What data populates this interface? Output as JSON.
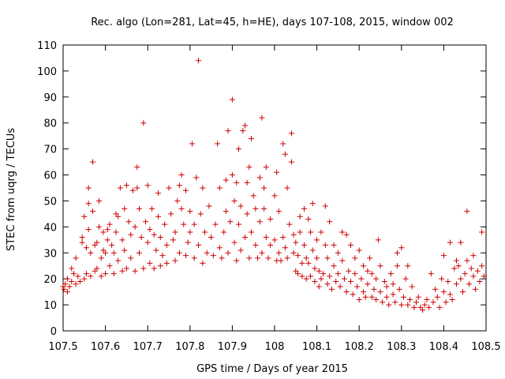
{
  "chart_data": {
    "type": "scatter",
    "title": "Rec. algo (Lon=281, Lat=45, h=HE), days 107-108, 2015, window 002",
    "xlabel": "GPS time / Days of year 2015",
    "ylabel": "STEC from uqrg / TECUs",
    "xlim": [
      107.5,
      108.5
    ],
    "ylim": [
      0,
      110
    ],
    "x_ticks": [
      "107.5",
      "107.6",
      "107.7",
      "107.8",
      "107.9",
      "108",
      "108.1",
      "108.2",
      "108.3",
      "108.4",
      "108.5"
    ],
    "y_ticks": [
      "0",
      "10",
      "20",
      "30",
      "40",
      "50",
      "60",
      "70",
      "80",
      "90",
      "100",
      "110"
    ],
    "grid": false,
    "marker": "+",
    "color": "#cc0000",
    "series": [
      {
        "points": [
          [
            107.5,
            17
          ],
          [
            107.502,
            16
          ],
          [
            107.505,
            18
          ],
          [
            107.51,
            15
          ],
          [
            107.51,
            20
          ],
          [
            107.515,
            17
          ],
          [
            107.52,
            19
          ],
          [
            107.52,
            24
          ],
          [
            107.525,
            22
          ],
          [
            107.53,
            18
          ],
          [
            107.53,
            28
          ],
          [
            107.535,
            21
          ],
          [
            107.54,
            19
          ],
          [
            107.545,
            36
          ],
          [
            107.545,
            34
          ],
          [
            107.55,
            20
          ],
          [
            107.55,
            44
          ],
          [
            107.555,
            22
          ],
          [
            107.555,
            32
          ],
          [
            107.56,
            39
          ],
          [
            107.56,
            49
          ],
          [
            107.56,
            55
          ],
          [
            107.565,
            21
          ],
          [
            107.565,
            30
          ],
          [
            107.57,
            46
          ],
          [
            107.57,
            65
          ],
          [
            107.575,
            23
          ],
          [
            107.575,
            33
          ],
          [
            107.58,
            24
          ],
          [
            107.58,
            34
          ],
          [
            107.585,
            50
          ],
          [
            107.585,
            40
          ],
          [
            107.59,
            21
          ],
          [
            107.59,
            28
          ],
          [
            107.595,
            31
          ],
          [
            107.595,
            38
          ],
          [
            107.6,
            22
          ],
          [
            107.6,
            30
          ],
          [
            107.605,
            39
          ],
          [
            107.605,
            35
          ],
          [
            107.61,
            25
          ],
          [
            107.61,
            41
          ],
          [
            107.615,
            33
          ],
          [
            107.62,
            22
          ],
          [
            107.62,
            30
          ],
          [
            107.625,
            45
          ],
          [
            107.625,
            38
          ],
          [
            107.63,
            27
          ],
          [
            107.63,
            44
          ],
          [
            107.635,
            55
          ],
          [
            107.64,
            23
          ],
          [
            107.64,
            35
          ],
          [
            107.645,
            47
          ],
          [
            107.645,
            31
          ],
          [
            107.65,
            24
          ],
          [
            107.65,
            56
          ],
          [
            107.655,
            42
          ],
          [
            107.66,
            28
          ],
          [
            107.66,
            37
          ],
          [
            107.665,
            54
          ],
          [
            107.67,
            23
          ],
          [
            107.67,
            40
          ],
          [
            107.675,
            55
          ],
          [
            107.675,
            63
          ],
          [
            107.68,
            30
          ],
          [
            107.68,
            47
          ],
          [
            107.685,
            36
          ],
          [
            107.69,
            80
          ],
          [
            107.69,
            24
          ],
          [
            107.695,
            42
          ],
          [
            107.7,
            34
          ],
          [
            107.7,
            56
          ],
          [
            107.705,
            26
          ],
          [
            107.705,
            39
          ],
          [
            107.71,
            47
          ],
          [
            107.715,
            24
          ],
          [
            107.715,
            37
          ],
          [
            107.72,
            31
          ],
          [
            107.725,
            44
          ],
          [
            107.725,
            53
          ],
          [
            107.73,
            25
          ],
          [
            107.73,
            36
          ],
          [
            107.735,
            29
          ],
          [
            107.74,
            41
          ],
          [
            107.745,
            26
          ],
          [
            107.745,
            33
          ],
          [
            107.75,
            55
          ],
          [
            107.755,
            45
          ],
          [
            107.76,
            35
          ],
          [
            107.765,
            27
          ],
          [
            107.765,
            38
          ],
          [
            107.77,
            50
          ],
          [
            107.775,
            56
          ],
          [
            107.775,
            30
          ],
          [
            107.78,
            47
          ],
          [
            107.78,
            60
          ],
          [
            107.785,
            41
          ],
          [
            107.79,
            29
          ],
          [
            107.79,
            54
          ],
          [
            107.795,
            34
          ],
          [
            107.8,
            46
          ],
          [
            107.8,
            38
          ],
          [
            107.805,
            72
          ],
          [
            107.81,
            28
          ],
          [
            107.81,
            41
          ],
          [
            107.815,
            59
          ],
          [
            107.82,
            104
          ],
          [
            107.82,
            33
          ],
          [
            107.825,
            45
          ],
          [
            107.83,
            26
          ],
          [
            107.83,
            55
          ],
          [
            107.835,
            38
          ],
          [
            107.84,
            30
          ],
          [
            107.845,
            48
          ],
          [
            107.85,
            36
          ],
          [
            107.855,
            29
          ],
          [
            107.86,
            41
          ],
          [
            107.865,
            72
          ],
          [
            107.87,
            32
          ],
          [
            107.87,
            55
          ],
          [
            107.875,
            28
          ],
          [
            107.88,
            38
          ],
          [
            107.885,
            46
          ],
          [
            107.885,
            58
          ],
          [
            107.89,
            30
          ],
          [
            107.89,
            77
          ],
          [
            107.895,
            42
          ],
          [
            107.9,
            89
          ],
          [
            107.9,
            60
          ],
          [
            107.905,
            34
          ],
          [
            107.905,
            50
          ],
          [
            107.91,
            27
          ],
          [
            107.91,
            57
          ],
          [
            107.915,
            70
          ],
          [
            107.915,
            41
          ],
          [
            107.92,
            31
          ],
          [
            107.92,
            48
          ],
          [
            107.925,
            77
          ],
          [
            107.93,
            36
          ],
          [
            107.93,
            79
          ],
          [
            107.935,
            45
          ],
          [
            107.935,
            57
          ],
          [
            107.94,
            28
          ],
          [
            107.94,
            63
          ],
          [
            107.945,
            74
          ],
          [
            107.945,
            38
          ],
          [
            107.95,
            52
          ],
          [
            107.955,
            33
          ],
          [
            107.955,
            47
          ],
          [
            107.96,
            28
          ],
          [
            107.965,
            59
          ],
          [
            107.965,
            42
          ],
          [
            107.97,
            82
          ],
          [
            107.97,
            30
          ],
          [
            107.975,
            47
          ],
          [
            107.975,
            55
          ],
          [
            107.98,
            36
          ],
          [
            107.98,
            63
          ],
          [
            107.985,
            28
          ],
          [
            107.99,
            43
          ],
          [
            107.99,
            33
          ],
          [
            108.0,
            52
          ],
          [
            108.0,
            35
          ],
          [
            108.005,
            61
          ],
          [
            108.005,
            27
          ],
          [
            108.01,
            46
          ],
          [
            108.01,
            30
          ],
          [
            108.015,
            27
          ],
          [
            108.02,
            36
          ],
          [
            108.02,
            72
          ],
          [
            108.025,
            68
          ],
          [
            108.025,
            32
          ],
          [
            108.03,
            28
          ],
          [
            108.03,
            55
          ],
          [
            108.035,
            41
          ],
          [
            108.04,
            76
          ],
          [
            108.04,
            65
          ],
          [
            108.045,
            30
          ],
          [
            108.045,
            37
          ],
          [
            108.05,
            23
          ],
          [
            108.05,
            34
          ],
          [
            108.055,
            22
          ],
          [
            108.055,
            29
          ],
          [
            108.06,
            44
          ],
          [
            108.06,
            38
          ],
          [
            108.065,
            26
          ],
          [
            108.065,
            21
          ],
          [
            108.07,
            33
          ],
          [
            108.07,
            47
          ],
          [
            108.075,
            28
          ],
          [
            108.075,
            20
          ],
          [
            108.08,
            43
          ],
          [
            108.08,
            26
          ],
          [
            108.085,
            38
          ],
          [
            108.085,
            21
          ],
          [
            108.09,
            49
          ],
          [
            108.09,
            31
          ],
          [
            108.095,
            24
          ],
          [
            108.095,
            19
          ],
          [
            108.1,
            35
          ],
          [
            108.1,
            28
          ],
          [
            108.105,
            23
          ],
          [
            108.105,
            17
          ],
          [
            108.11,
            38
          ],
          [
            108.11,
            20
          ],
          [
            108.115,
            22
          ],
          [
            108.12,
            33
          ],
          [
            108.12,
            48
          ],
          [
            108.125,
            18
          ],
          [
            108.125,
            28
          ],
          [
            108.13,
            42
          ],
          [
            108.13,
            21
          ],
          [
            108.135,
            16
          ],
          [
            108.14,
            33
          ],
          [
            108.14,
            25
          ],
          [
            108.145,
            19
          ],
          [
            108.15,
            30
          ],
          [
            108.15,
            22
          ],
          [
            108.155,
            17
          ],
          [
            108.16,
            38
          ],
          [
            108.16,
            27
          ],
          [
            108.165,
            20
          ],
          [
            108.17,
            15
          ],
          [
            108.17,
            37
          ],
          [
            108.175,
            23
          ],
          [
            108.18,
            19
          ],
          [
            108.18,
            33
          ],
          [
            108.185,
            14
          ],
          [
            108.19,
            28
          ],
          [
            108.19,
            22
          ],
          [
            108.195,
            17
          ],
          [
            108.2,
            12
          ],
          [
            108.2,
            31
          ],
          [
            108.205,
            20
          ],
          [
            108.21,
            25
          ],
          [
            108.21,
            15
          ],
          [
            108.215,
            13
          ],
          [
            108.22,
            23
          ],
          [
            108.22,
            18
          ],
          [
            108.225,
            28
          ],
          [
            108.23,
            13
          ],
          [
            108.23,
            22
          ],
          [
            108.235,
            16
          ],
          [
            108.24,
            12
          ],
          [
            108.24,
            20
          ],
          [
            108.245,
            35
          ],
          [
            108.25,
            15
          ],
          [
            108.25,
            25
          ],
          [
            108.255,
            11
          ],
          [
            108.26,
            19
          ],
          [
            108.265,
            13
          ],
          [
            108.265,
            17
          ],
          [
            108.27,
            10
          ],
          [
            108.275,
            22
          ],
          [
            108.28,
            14
          ],
          [
            108.28,
            18
          ],
          [
            108.285,
            11
          ],
          [
            108.29,
            30
          ],
          [
            108.29,
            25
          ],
          [
            108.295,
            16
          ],
          [
            108.3,
            10
          ],
          [
            108.3,
            32
          ],
          [
            108.305,
            13
          ],
          [
            108.31,
            20
          ],
          [
            108.315,
            10
          ],
          [
            108.315,
            25
          ],
          [
            108.32,
            12
          ],
          [
            108.325,
            17
          ],
          [
            108.33,
            9
          ],
          [
            108.335,
            11
          ],
          [
            108.34,
            13
          ],
          [
            108.345,
            9
          ],
          [
            108.35,
            8
          ],
          [
            108.355,
            10
          ],
          [
            108.36,
            12
          ],
          [
            108.365,
            9
          ],
          [
            108.37,
            22
          ],
          [
            108.375,
            11
          ],
          [
            108.38,
            16
          ],
          [
            108.385,
            13
          ],
          [
            108.39,
            9
          ],
          [
            108.395,
            20
          ],
          [
            108.4,
            29
          ],
          [
            108.4,
            15
          ],
          [
            108.405,
            11
          ],
          [
            108.41,
            19
          ],
          [
            108.415,
            34
          ],
          [
            108.415,
            14
          ],
          [
            108.42,
            12
          ],
          [
            108.425,
            24
          ],
          [
            108.43,
            27
          ],
          [
            108.43,
            18
          ],
          [
            108.435,
            25
          ],
          [
            108.44,
            20
          ],
          [
            108.44,
            34
          ],
          [
            108.445,
            15
          ],
          [
            108.45,
            22
          ],
          [
            108.455,
            46
          ],
          [
            108.455,
            27
          ],
          [
            108.46,
            18
          ],
          [
            108.465,
            24
          ],
          [
            108.47,
            21
          ],
          [
            108.47,
            29
          ],
          [
            108.475,
            16
          ],
          [
            108.48,
            23
          ],
          [
            108.485,
            19
          ],
          [
            108.49,
            38
          ],
          [
            108.49,
            25
          ],
          [
            108.495,
            21
          ]
        ]
      }
    ]
  }
}
